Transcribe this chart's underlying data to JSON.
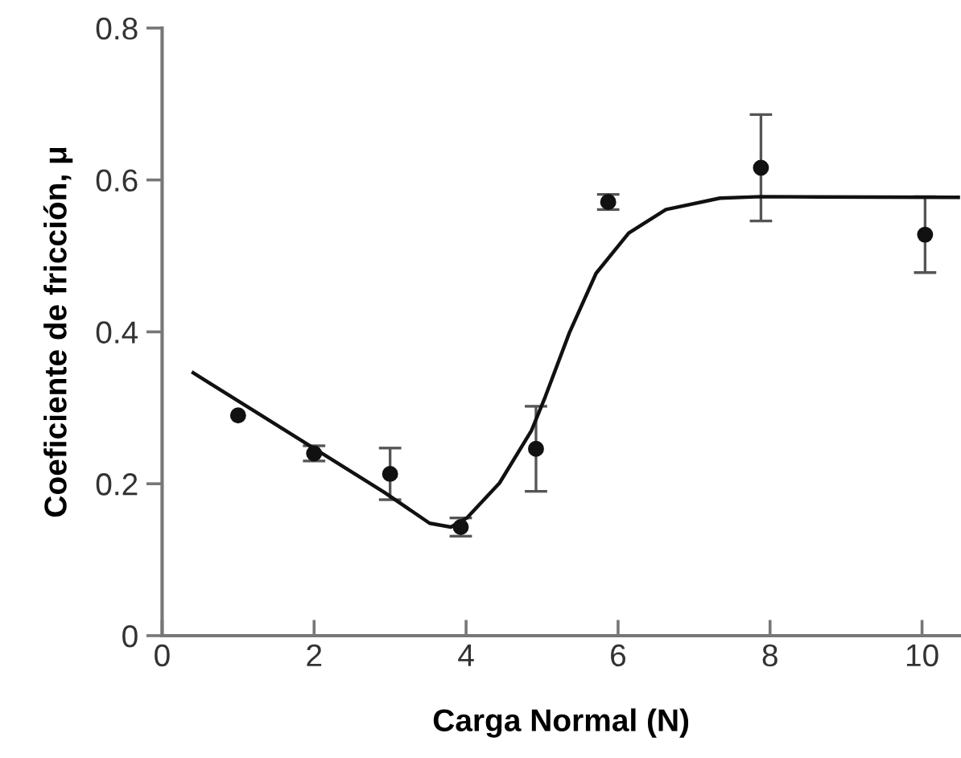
{
  "chart_data": {
    "type": "scatter",
    "xlabel": "Carga Normal (N)",
    "ylabel": "Coeficiente de fricción, μ",
    "xlim": [
      0,
      10.5
    ],
    "xticks": [
      0,
      2,
      4,
      6,
      8,
      10
    ],
    "ylim": [
      0,
      0.8
    ],
    "yticks": [
      0,
      0.2,
      0.4,
      0.6,
      0.8
    ],
    "grid": false,
    "legend": false,
    "series": [
      {
        "color": "#111111",
        "marker": "circle",
        "x": [
          1.0,
          2.0,
          3.0,
          3.93,
          4.92,
          5.87,
          7.88,
          10.04
        ],
        "values": [
          0.29,
          0.24,
          0.213,
          0.143,
          0.246,
          0.571,
          0.616,
          0.528
        ],
        "errors": [
          null,
          0.01,
          0.034,
          0.012,
          0.056,
          0.01,
          0.07,
          0.05
        ]
      },
      {
        "type": "line",
        "color": "#111111",
        "marker": "none",
        "line_style": "solid",
        "x": [
          0.41,
          2.92,
          3.52,
          3.8,
          4.01,
          4.44,
          4.86,
          5.04,
          5.36,
          5.71,
          6.14,
          6.63,
          7.34,
          7.88,
          10.5
        ],
        "values": [
          0.346,
          0.189,
          0.148,
          0.143,
          0.155,
          0.201,
          0.27,
          0.314,
          0.399,
          0.477,
          0.53,
          0.561,
          0.576,
          0.578,
          0.577
        ]
      }
    ]
  }
}
